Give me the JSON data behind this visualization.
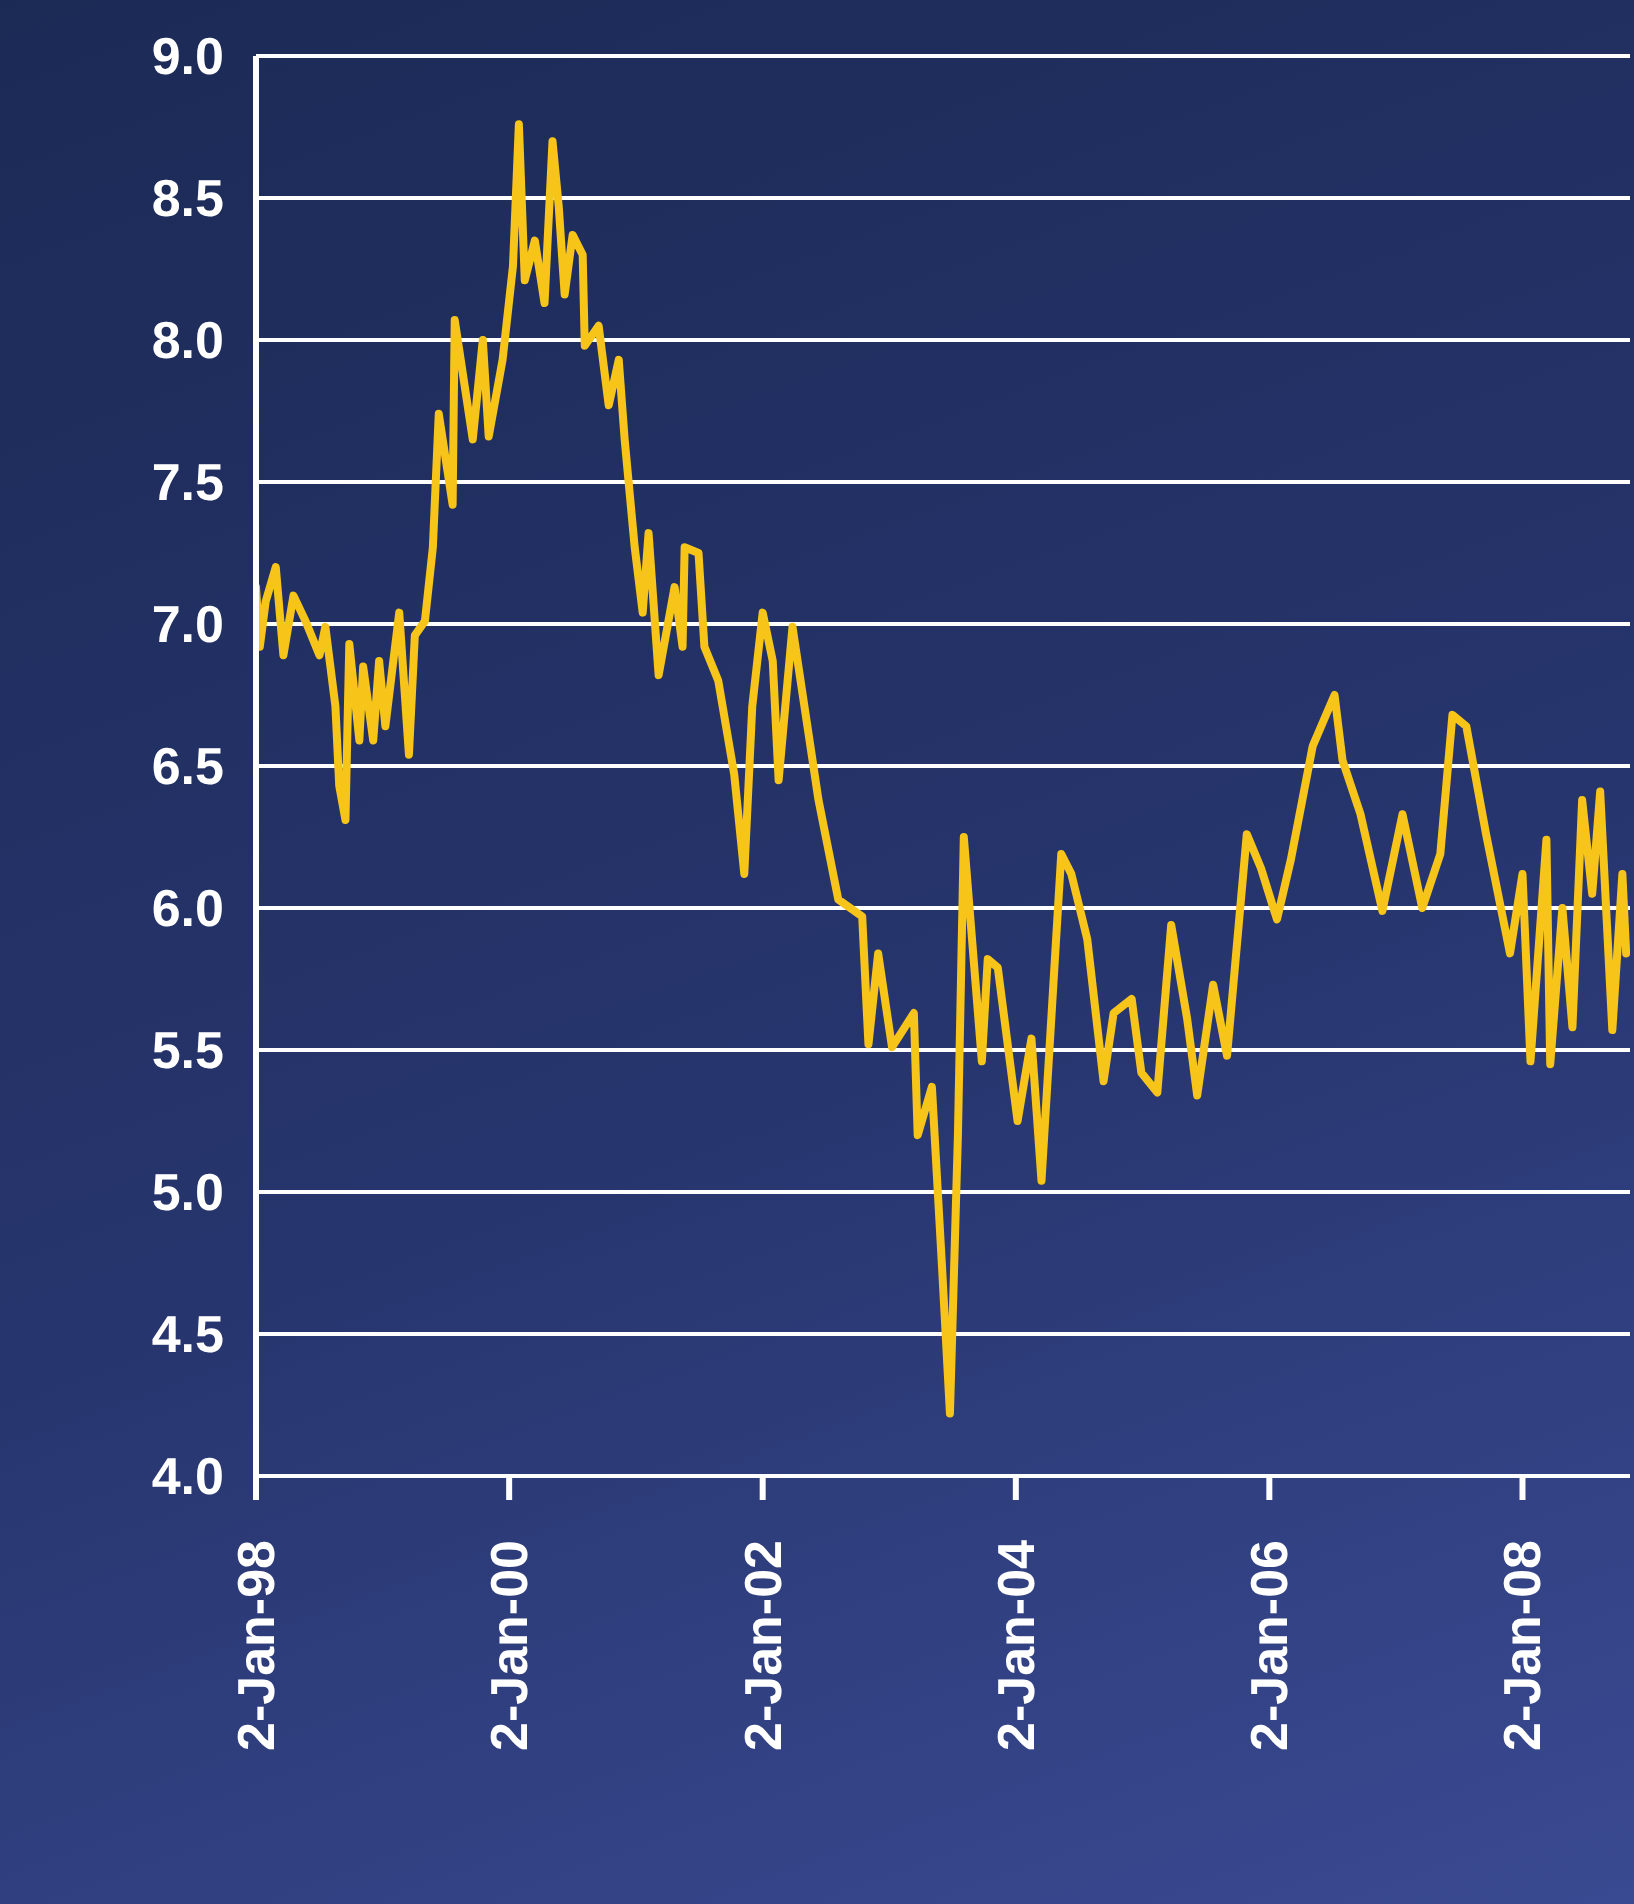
{
  "chart_data": {
    "type": "line",
    "x": [
      "1998-01-02",
      "1998-01-13",
      "1998-01-30",
      "1998-02-28",
      "1998-03-22",
      "1998-04-20",
      "1998-05-25",
      "1998-07-04",
      "1998-07-21",
      "1998-08-19",
      "1998-08-30",
      "1998-09-17",
      "1998-09-28",
      "1998-10-27",
      "1998-11-07",
      "1998-12-06",
      "1998-12-23",
      "1999-01-10",
      "1999-02-19",
      "1999-03-19",
      "1999-04-05",
      "1999-05-04",
      "1999-05-27",
      "1999-06-13",
      "1999-07-23",
      "1999-07-29",
      "1999-09-19",
      "1999-10-18",
      "1999-11-04",
      "1999-12-14",
      "2000-01-13",
      "2000-01-30",
      "2000-02-16",
      "2000-03-16",
      "2000-04-13",
      "2000-05-06",
      "2000-05-24",
      "2000-06-10",
      "2000-07-03",
      "2000-08-01",
      "2000-08-07",
      "2000-09-16",
      "2000-10-15",
      "2000-11-13",
      "2000-11-30",
      "2000-12-29",
      "2001-01-21",
      "2001-02-07",
      "2001-03-08",
      "2001-04-23",
      "2001-05-16",
      "2001-05-22",
      "2001-07-01",
      "2001-07-18",
      "2001-08-27",
      "2001-10-12",
      "2001-11-10",
      "2001-12-03",
      "2002-01-02",
      "2002-01-31",
      "2002-02-17",
      "2002-03-29",
      "2002-06-12",
      "2002-08-08",
      "2002-10-16",
      "2002-11-03",
      "2002-12-01",
      "2003-01-10",
      "2003-03-14",
      "2003-03-25",
      "2003-05-05",
      "2003-06-03",
      "2003-06-26",
      "2003-07-19",
      "2003-08-05",
      "2003-09-26",
      "2003-10-13",
      "2003-11-11",
      "2004-01-07",
      "2004-02-16",
      "2004-03-16",
      "2004-05-12",
      "2004-06-10",
      "2004-07-26",
      "2004-09-11",
      "2004-10-10",
      "2004-12-01",
      "2004-12-29",
      "2005-02-13",
      "2005-03-25",
      "2005-05-10",
      "2005-06-08",
      "2005-07-24",
      "2005-09-02",
      "2005-10-29",
      "2005-12-09",
      "2006-01-24",
      "2006-03-05",
      "2006-05-07",
      "2006-07-09",
      "2006-08-01",
      "2006-09-22",
      "2006-11-24",
      "2007-01-21",
      "2007-03-19",
      "2007-05-10",
      "2007-06-14",
      "2007-07-24",
      "2007-09-19",
      "2007-11-27",
      "2008-01-02",
      "2008-01-25",
      "2008-03-11",
      "2008-03-22",
      "2008-04-26",
      "2008-05-25",
      "2008-06-22",
      "2008-07-21",
      "2008-08-13",
      "2008-09-17",
      "2008-10-16",
      "2008-10-27"
    ],
    "series": [
      {
        "color": "#f7c41a",
        "values": [
          7.13,
          6.92,
          7.08,
          7.2,
          6.89,
          7.1,
          7.01,
          6.89,
          6.99,
          6.71,
          6.43,
          6.31,
          6.93,
          6.59,
          6.85,
          6.59,
          6.87,
          6.64,
          7.04,
          6.54,
          6.96,
          7.01,
          7.27,
          7.74,
          7.42,
          8.07,
          7.65,
          8.0,
          7.66,
          7.93,
          8.26,
          8.76,
          8.21,
          8.35,
          8.13,
          8.7,
          8.47,
          8.16,
          8.37,
          8.3,
          7.98,
          8.05,
          7.77,
          7.93,
          7.65,
          7.27,
          7.04,
          7.32,
          6.82,
          7.13,
          6.92,
          7.27,
          7.25,
          6.92,
          6.8,
          6.47,
          6.12,
          6.71,
          7.04,
          6.87,
          6.45,
          6.99,
          6.38,
          6.03,
          5.97,
          5.52,
          5.84,
          5.51,
          5.63,
          5.2,
          5.37,
          4.74,
          4.22,
          5.2,
          6.25,
          5.46,
          5.82,
          5.79,
          5.25,
          5.54,
          5.04,
          6.19,
          6.12,
          5.89,
          5.39,
          5.63,
          5.68,
          5.42,
          5.35,
          5.94,
          5.61,
          5.34,
          5.73,
          5.48,
          6.26,
          6.14,
          5.96,
          6.17,
          6.57,
          6.75,
          6.52,
          6.33,
          5.99,
          6.33,
          6.0,
          6.19,
          6.68,
          6.64,
          6.26,
          5.84,
          6.12,
          5.46,
          6.24,
          5.45,
          6.0,
          5.58,
          6.38,
          6.05,
          6.41,
          5.57,
          6.12,
          5.84
        ]
      }
    ],
    "xlim": [
      "1998-01-02",
      "2008-11-07"
    ],
    "xticks": [
      {
        "value": "1998-01-02",
        "label": "2-Jan-98"
      },
      {
        "value": "2000-01-02",
        "label": "2-Jan-00"
      },
      {
        "value": "2002-01-02",
        "label": "2-Jan-02"
      },
      {
        "value": "2004-01-02",
        "label": "2-Jan-04"
      },
      {
        "value": "2006-01-02",
        "label": "2-Jan-06"
      },
      {
        "value": "2008-01-02",
        "label": "2-Jan-08"
      }
    ],
    "ylim": [
      4,
      9
    ],
    "yticks": [
      {
        "value": 4,
        "label": "4.0"
      },
      {
        "value": 4.5,
        "label": "4.5"
      },
      {
        "value": 5,
        "label": "5.0"
      },
      {
        "value": 5.5,
        "label": "5.5"
      },
      {
        "value": 6,
        "label": "6.0"
      },
      {
        "value": 6.5,
        "label": "6.5"
      },
      {
        "value": 7,
        "label": "7.0"
      },
      {
        "value": 7.5,
        "label": "7.5"
      },
      {
        "value": 8,
        "label": "8.0"
      },
      {
        "value": 8.5,
        "label": "8.5"
      },
      {
        "value": 9,
        "label": "9.0"
      }
    ],
    "grid": "y",
    "legend": false,
    "marker": "none",
    "line_style": "solid"
  }
}
